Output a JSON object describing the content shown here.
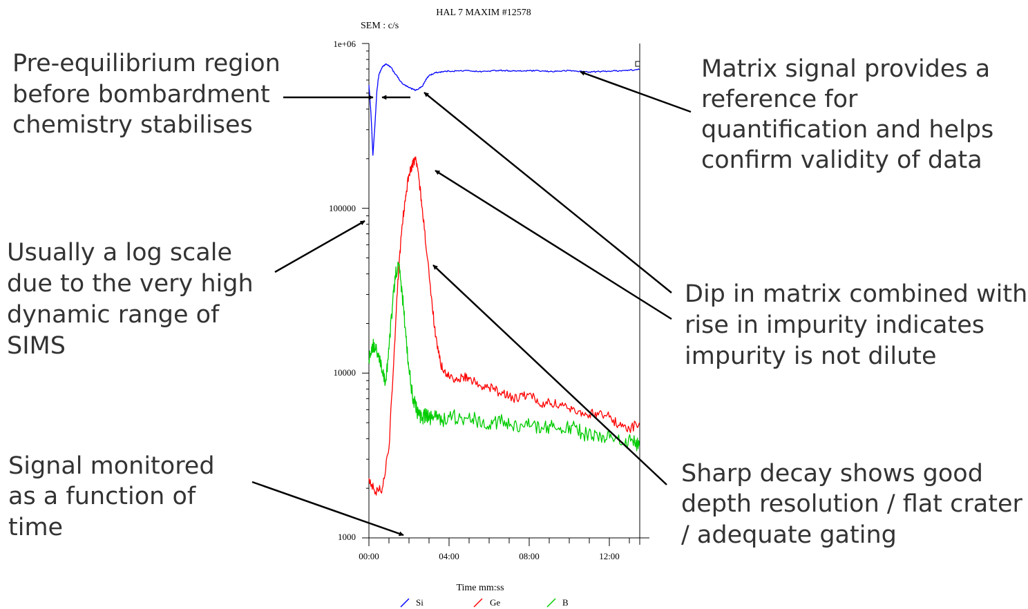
{
  "chart_data": {
    "type": "line",
    "title": "HAL 7 MAXIM  #12578",
    "ylabel": "SEM : c/s",
    "xlabel": "Time  mm:ss",
    "y_scale": "log",
    "ylim": [
      1000,
      1000000
    ],
    "xlim_seconds": [
      0,
      840
    ],
    "y_tick_labels": [
      "1e+06",
      "100000",
      "10000",
      "1000"
    ],
    "x_tick_labels": [
      "00:00",
      "04:00",
      "08:00",
      "12:00"
    ],
    "legend_position": "bottom",
    "series": [
      {
        "name": "Si",
        "color": "#0000ff",
        "x_seconds": [
          0,
          6,
          12,
          18,
          24,
          30,
          40,
          50,
          65,
          80,
          100,
          120,
          140,
          160,
          170,
          180,
          200,
          220,
          240,
          270,
          300,
          330,
          360,
          390,
          420,
          450,
          480,
          510,
          540,
          570,
          600,
          630,
          660,
          690,
          720,
          750,
          780,
          810
        ],
        "y": [
          560000,
          380000,
          210000,
          320000,
          520000,
          650000,
          720000,
          750000,
          720000,
          650000,
          570000,
          540000,
          520000,
          550000,
          600000,
          640000,
          665000,
          675000,
          680000,
          682000,
          685000,
          675000,
          680000,
          688000,
          683000,
          680000,
          684000,
          682000,
          676000,
          680000,
          685000,
          678000,
          672000,
          676000,
          680000,
          684000,
          688000,
          696000
        ]
      },
      {
        "name": "Ge",
        "color": "#ff0000",
        "x_seconds": [
          0,
          20,
          40,
          60,
          80,
          90,
          100,
          110,
          120,
          130,
          140,
          150,
          160,
          175,
          190,
          205,
          220,
          240,
          260,
          280,
          300,
          330,
          360,
          390,
          420,
          450,
          480,
          510,
          540,
          570,
          600,
          630,
          660,
          690,
          720,
          750,
          780,
          810
        ],
        "y": [
          2300,
          1900,
          2000,
          3500,
          20000,
          45000,
          80000,
          120000,
          160000,
          180000,
          205000,
          150000,
          100000,
          50000,
          25000,
          14000,
          10500,
          9500,
          9000,
          9500,
          9200,
          8500,
          8200,
          7600,
          7200,
          7000,
          7500,
          6500,
          6800,
          6300,
          6100,
          5900,
          5600,
          5800,
          5400,
          4800,
          4600,
          5000
        ]
      },
      {
        "name": "B",
        "color": "#00cc00",
        "x_seconds": [
          0,
          10,
          20,
          30,
          40,
          50,
          60,
          70,
          80,
          90,
          100,
          110,
          120,
          130,
          140,
          150,
          160,
          170,
          180,
          200,
          220,
          250,
          280,
          310,
          340,
          370,
          400,
          430,
          460,
          490,
          520,
          550,
          580,
          610,
          640,
          670,
          700,
          730,
          760,
          790,
          810
        ],
        "y": [
          12000,
          15000,
          14000,
          12500,
          10000,
          9000,
          14000,
          25000,
          40000,
          45000,
          30000,
          18000,
          10500,
          7500,
          6200,
          5500,
          5300,
          5600,
          5300,
          5400,
          5200,
          5500,
          5100,
          5300,
          5000,
          4900,
          5200,
          4700,
          4800,
          4900,
          4600,
          4700,
          4500,
          4800,
          4300,
          4100,
          4200,
          4000,
          3800,
          3900,
          3600
        ]
      }
    ]
  },
  "annotations": {
    "pre_equilibrium": [
      "Pre-equilibrium region",
      "before bombardment",
      "chemistry stabilises"
    ],
    "matrix_signal": [
      "Matrix signal provides a",
      "reference for",
      "quantification and helps",
      "confirm validity of data"
    ],
    "log_scale": [
      "Usually a log scale",
      "due to the very high",
      "dynamic range of",
      "SIMS"
    ],
    "dip_in_matrix": [
      "Dip in matrix combined with",
      "rise in impurity indicates",
      "impurity is not dilute"
    ],
    "signal_monitored": [
      "Signal monitored",
      "as a function of",
      "time"
    ],
    "sharp_decay": [
      "Sharp decay shows good",
      "depth resolution / flat crater",
      "/ adequate gating"
    ]
  },
  "colors": {
    "annotation_text": "#333333",
    "arrow": "#000000",
    "axis": "#000000"
  }
}
